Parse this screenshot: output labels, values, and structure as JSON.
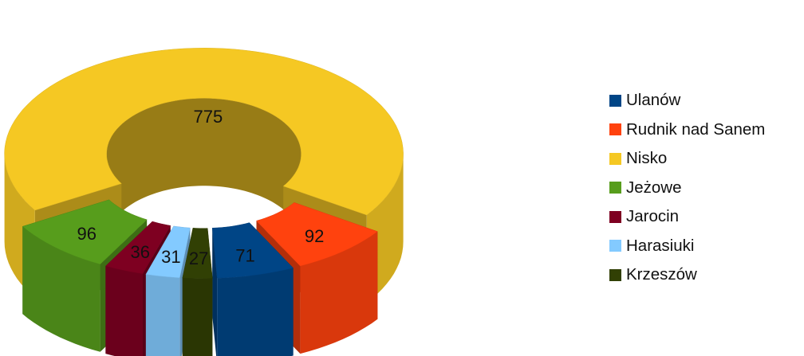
{
  "chart_data": {
    "type": "pie",
    "style": "3d-exploded-donut",
    "title": "",
    "legend_position": "right",
    "slices": [
      {
        "name": "Nisko",
        "value": 775,
        "color": "#F5C823"
      },
      {
        "name": "Rudnik nad Sanem",
        "value": 92,
        "color": "#FF420E"
      },
      {
        "name": "Ulanów",
        "value": 71,
        "color": "#004586"
      },
      {
        "name": "Krzeszów",
        "value": 27,
        "color": "#314004"
      },
      {
        "name": "Harasiuki",
        "value": 31,
        "color": "#83CAFF"
      },
      {
        "name": "Jarocin",
        "value": 36,
        "color": "#7E0021"
      },
      {
        "name": "Jeżowe",
        "value": 96,
        "color": "#579D1C"
      }
    ],
    "legend": [
      {
        "name": "Ulanów",
        "color": "#004586"
      },
      {
        "name": "Rudnik nad Sanem",
        "color": "#FF420E"
      },
      {
        "name": "Nisko",
        "color": "#F5C823"
      },
      {
        "name": "Jeżowe",
        "color": "#579D1C"
      },
      {
        "name": "Jarocin",
        "color": "#7E0021"
      },
      {
        "name": "Harasiuki",
        "color": "#83CAFF"
      },
      {
        "name": "Krzeszów",
        "color": "#314004"
      }
    ]
  }
}
